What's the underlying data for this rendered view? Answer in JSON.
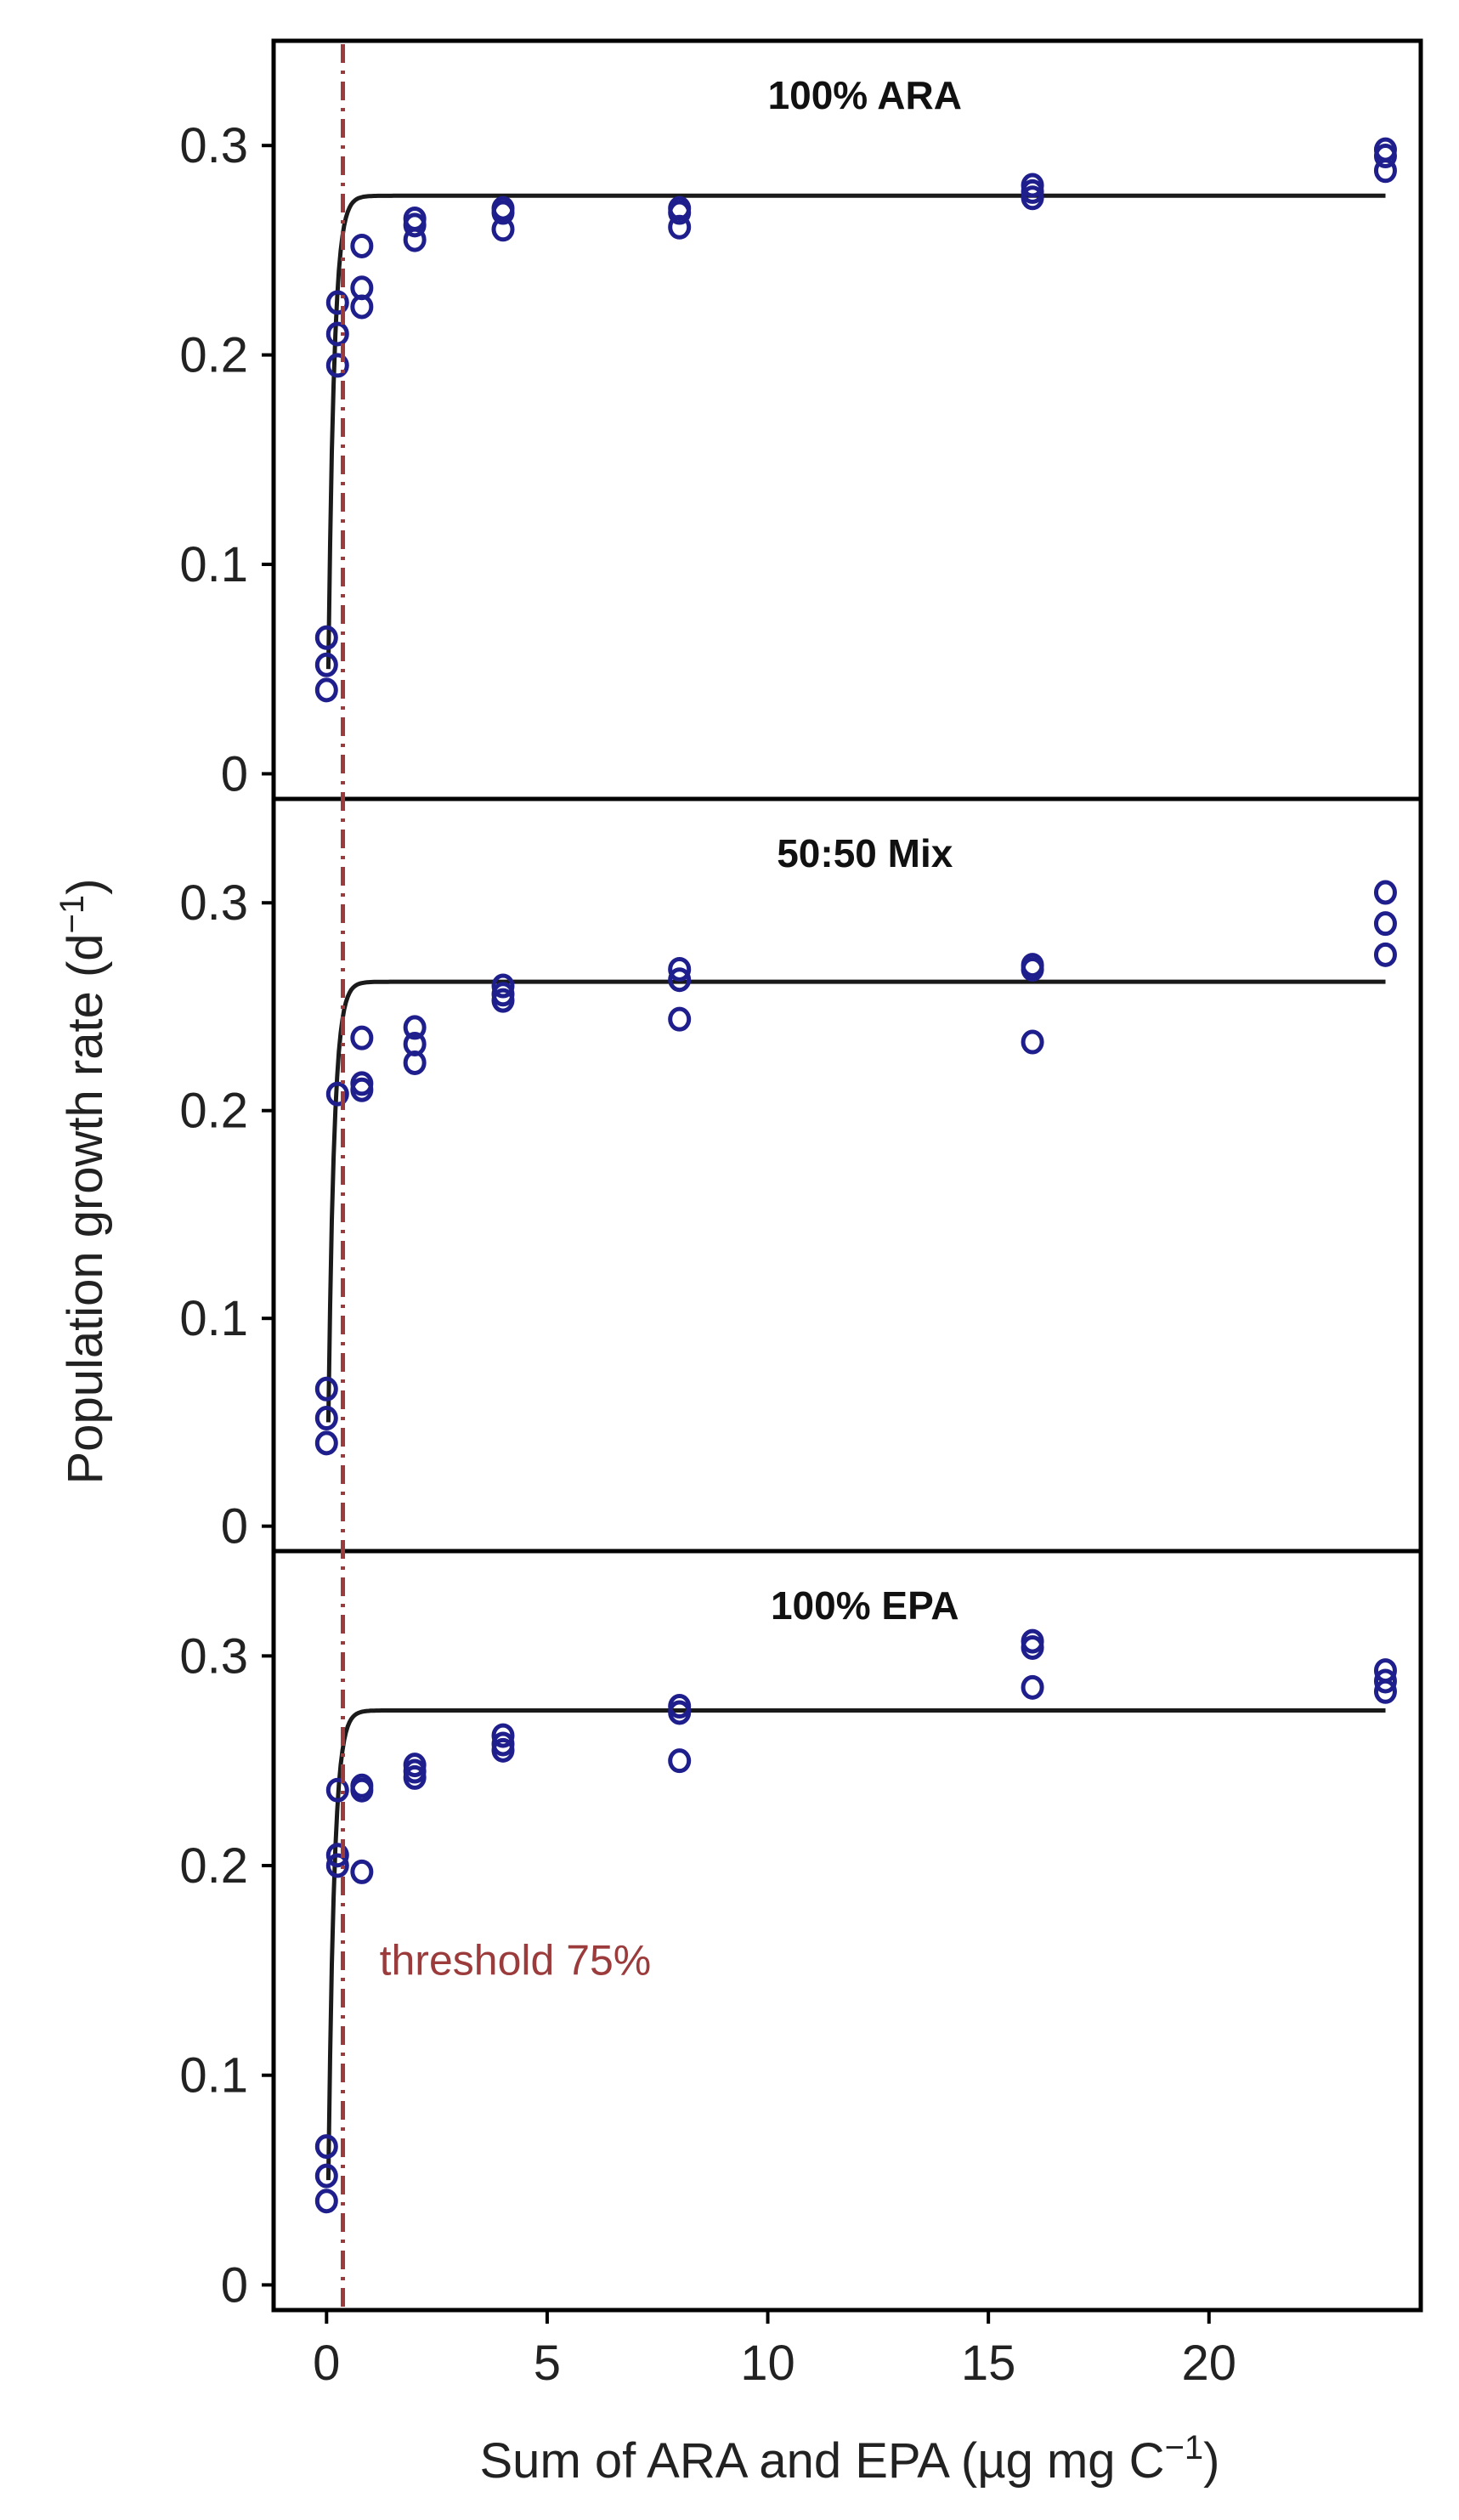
{
  "colors": {
    "points": "#1e1e8c",
    "fit": "#1a1a1a",
    "threshold": "#9b3b3b",
    "frame": "#000000"
  },
  "chart_data": {
    "type": "scatter",
    "layout": "three vertically stacked panels sharing the x axis",
    "xlabel": "Sum of ARA and EPA (µg  mg C",
    "xlabel_superscript": "−1",
    "xlabel_suffix": ")",
    "ylabel": "Population growth rate (d",
    "ylabel_superscript": "−1",
    "ylabel_suffix": ")",
    "xlim": [
      -1.2,
      24.8
    ],
    "ylim": [
      -0.012,
      0.35
    ],
    "x_ticks": [
      0,
      5,
      10,
      15,
      20
    ],
    "x_tick_labels": [
      "0",
      "5",
      "10",
      "15",
      "20"
    ],
    "y_ticks": [
      0,
      0.1,
      0.2,
      0.3
    ],
    "y_tick_labels": [
      "0",
      "0.1",
      "0.2",
      "0.3"
    ],
    "grid": false,
    "threshold": {
      "x": 0.37,
      "style": "dash-dot",
      "annotation": "threshold 75%",
      "annotation_anchor": {
        "x": 1.2,
        "y": 0.148
      }
    },
    "panels": [
      {
        "title": "100% ARA",
        "fit": {
          "type": "saturating",
          "asymptote": 0.276,
          "intercept": 0.05,
          "x0": 0.04,
          "k": 0.13
        },
        "points": [
          {
            "x": 0,
            "y": 0.065
          },
          {
            "x": 0,
            "y": 0.052
          },
          {
            "x": 0,
            "y": 0.04
          },
          {
            "x": 0.25,
            "y": 0.225
          },
          {
            "x": 0.25,
            "y": 0.21
          },
          {
            "x": 0.25,
            "y": 0.195
          },
          {
            "x": 0.8,
            "y": 0.252
          },
          {
            "x": 0.8,
            "y": 0.232
          },
          {
            "x": 0.8,
            "y": 0.223
          },
          {
            "x": 2,
            "y": 0.265
          },
          {
            "x": 2,
            "y": 0.262
          },
          {
            "x": 2,
            "y": 0.255
          },
          {
            "x": 4,
            "y": 0.27
          },
          {
            "x": 4,
            "y": 0.268
          },
          {
            "x": 4,
            "y": 0.26
          },
          {
            "x": 8,
            "y": 0.27
          },
          {
            "x": 8,
            "y": 0.268
          },
          {
            "x": 8,
            "y": 0.261
          },
          {
            "x": 16,
            "y": 0.281
          },
          {
            "x": 16,
            "y": 0.278
          },
          {
            "x": 16,
            "y": 0.275
          },
          {
            "x": 24,
            "y": 0.298
          },
          {
            "x": 24,
            "y": 0.295
          },
          {
            "x": 24,
            "y": 0.288
          }
        ]
      },
      {
        "title": "50:50 Mix",
        "fit": {
          "type": "saturating",
          "asymptote": 0.262,
          "intercept": 0.05,
          "x0": 0.04,
          "k": 0.13
        },
        "points": [
          {
            "x": 0,
            "y": 0.066
          },
          {
            "x": 0,
            "y": 0.052
          },
          {
            "x": 0,
            "y": 0.04
          },
          {
            "x": 0.25,
            "y": 0.208
          },
          {
            "x": 0.8,
            "y": 0.235
          },
          {
            "x": 0.8,
            "y": 0.213
          },
          {
            "x": 0.8,
            "y": 0.21
          },
          {
            "x": 2,
            "y": 0.24
          },
          {
            "x": 2,
            "y": 0.232
          },
          {
            "x": 2,
            "y": 0.223
          },
          {
            "x": 4,
            "y": 0.26
          },
          {
            "x": 4,
            "y": 0.256
          },
          {
            "x": 4,
            "y": 0.253
          },
          {
            "x": 8,
            "y": 0.268
          },
          {
            "x": 8,
            "y": 0.263
          },
          {
            "x": 8,
            "y": 0.244
          },
          {
            "x": 16,
            "y": 0.27
          },
          {
            "x": 16,
            "y": 0.268
          },
          {
            "x": 16,
            "y": 0.233
          },
          {
            "x": 24,
            "y": 0.305
          },
          {
            "x": 24,
            "y": 0.29
          },
          {
            "x": 24,
            "y": 0.275
          }
        ]
      },
      {
        "title": "100% EPA",
        "fit": {
          "type": "saturating",
          "asymptote": 0.274,
          "intercept": 0.05,
          "x0": 0.04,
          "k": 0.13
        },
        "points": [
          {
            "x": 0,
            "y": 0.066
          },
          {
            "x": 0,
            "y": 0.052
          },
          {
            "x": 0,
            "y": 0.04
          },
          {
            "x": 0.25,
            "y": 0.236
          },
          {
            "x": 0.25,
            "y": 0.205
          },
          {
            "x": 0.25,
            "y": 0.2
          },
          {
            "x": 0.8,
            "y": 0.238
          },
          {
            "x": 0.8,
            "y": 0.236
          },
          {
            "x": 0.8,
            "y": 0.197
          },
          {
            "x": 2,
            "y": 0.248
          },
          {
            "x": 2,
            "y": 0.245
          },
          {
            "x": 2,
            "y": 0.242
          },
          {
            "x": 4,
            "y": 0.262
          },
          {
            "x": 4,
            "y": 0.258
          },
          {
            "x": 4,
            "y": 0.255
          },
          {
            "x": 8,
            "y": 0.276
          },
          {
            "x": 8,
            "y": 0.273
          },
          {
            "x": 8,
            "y": 0.25
          },
          {
            "x": 16,
            "y": 0.307
          },
          {
            "x": 16,
            "y": 0.304
          },
          {
            "x": 16,
            "y": 0.285
          },
          {
            "x": 24,
            "y": 0.293
          },
          {
            "x": 24,
            "y": 0.288
          },
          {
            "x": 24,
            "y": 0.283
          }
        ]
      }
    ]
  }
}
